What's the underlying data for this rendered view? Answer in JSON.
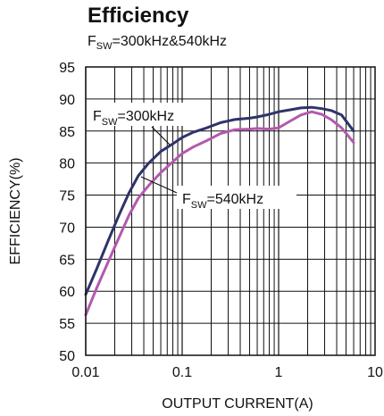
{
  "chart_data": {
    "type": "line",
    "title": "Efficiency",
    "subtitle": {
      "prefix": "F",
      "sub": "SW",
      "rest": "=300kHz&540kHz"
    },
    "xlabel": "OUTPUT CURRENT(A)",
    "ylabel": "EFFICIENCY(%)",
    "x_scale": "log",
    "xlim": [
      0.01,
      10
    ],
    "ylim": [
      50,
      95
    ],
    "x_ticks": [
      {
        "value": 0.01,
        "label": "0.01"
      },
      {
        "value": 0.1,
        "label": "0.1"
      },
      {
        "value": 1,
        "label": "1"
      },
      {
        "value": 10,
        "label": "10"
      }
    ],
    "y_ticks": [
      {
        "value": 95,
        "label": "95"
      },
      {
        "value": 90,
        "label": "90"
      },
      {
        "value": 85,
        "label": "85"
      },
      {
        "value": 80,
        "label": "80"
      },
      {
        "value": 75,
        "label": "75"
      },
      {
        "value": 70,
        "label": "70"
      },
      {
        "value": 65,
        "label": "65"
      },
      {
        "value": 60,
        "label": "60"
      },
      {
        "value": 55,
        "label": "55"
      },
      {
        "value": 50,
        "label": "50"
      }
    ],
    "grid": true,
    "series": [
      {
        "name": {
          "prefix": "F",
          "sub": "SW",
          "rest": "=300kHz"
        },
        "color": "#2e3468",
        "x": [
          0.01,
          0.013,
          0.017,
          0.022,
          0.028,
          0.035,
          0.045,
          0.06,
          0.08,
          0.1,
          0.13,
          0.18,
          0.25,
          0.35,
          0.5,
          0.6,
          0.8,
          1.0,
          1.3,
          1.7,
          2.2,
          2.8,
          3.5,
          4.5,
          6.0
        ],
        "y": [
          59.5,
          63.5,
          67.8,
          71.8,
          75.3,
          78.0,
          80.0,
          81.8,
          83.0,
          84.0,
          84.8,
          85.5,
          86.3,
          86.8,
          87.0,
          87.2,
          87.6,
          88.0,
          88.3,
          88.6,
          88.7,
          88.5,
          88.2,
          87.5,
          85.0
        ]
      },
      {
        "name": {
          "prefix": "F",
          "sub": "SW",
          "rest": "=540kHz"
        },
        "color": "#b25aad",
        "x": [
          0.01,
          0.013,
          0.017,
          0.022,
          0.028,
          0.035,
          0.045,
          0.06,
          0.08,
          0.1,
          0.13,
          0.18,
          0.25,
          0.35,
          0.5,
          0.6,
          0.8,
          1.0,
          1.3,
          1.7,
          2.2,
          2.8,
          3.5,
          4.5,
          6.0
        ],
        "y": [
          56.3,
          60.5,
          64.5,
          68.3,
          71.8,
          74.5,
          76.5,
          78.5,
          80.2,
          81.5,
          82.5,
          83.5,
          84.6,
          85.2,
          85.3,
          85.4,
          85.3,
          85.5,
          86.5,
          87.5,
          88.0,
          87.6,
          86.8,
          85.5,
          83.2
        ]
      }
    ]
  }
}
